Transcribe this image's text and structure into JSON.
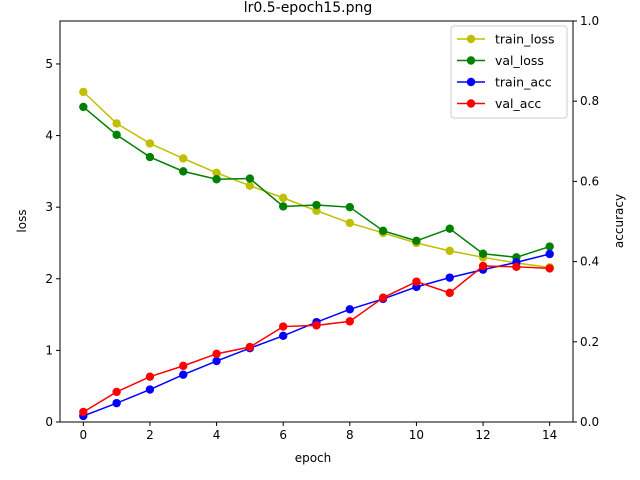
{
  "chart_data": {
    "type": "line",
    "title": "lr0.5-epoch15.png",
    "xlabel": "epoch",
    "ylabel": "loss",
    "y2label": "accuracy",
    "x": [
      0,
      1,
      2,
      3,
      4,
      5,
      6,
      7,
      8,
      9,
      10,
      11,
      12,
      13,
      14
    ],
    "xlim": [
      -0.7,
      14.7
    ],
    "ylim": [
      0,
      5.6
    ],
    "y2lim": [
      0,
      1.0
    ],
    "xticks": [
      0,
      2,
      4,
      6,
      8,
      10,
      12,
      14
    ],
    "xtick_labels": [
      "0",
      "2",
      "4",
      "6",
      "8",
      "10",
      "12",
      "14"
    ],
    "yticks": [
      0,
      1,
      2,
      3,
      4,
      5
    ],
    "ytick_labels": [
      "0",
      "1",
      "2",
      "3",
      "4",
      "5"
    ],
    "y2ticks": [
      0,
      0.2,
      0.4,
      0.6,
      0.8,
      1.0
    ],
    "y2tick_labels": [
      "0.0",
      "0.2",
      "0.4",
      "0.6",
      "0.8",
      "1.0"
    ],
    "grid": false,
    "legend_position": "top-right",
    "series": [
      {
        "name": "train_loss",
        "axis": "left",
        "color": "#bfbf00",
        "values": [
          4.61,
          4.17,
          3.89,
          3.68,
          3.48,
          3.3,
          3.13,
          2.95,
          2.78,
          2.64,
          2.5,
          2.39,
          2.3,
          2.22,
          2.16
        ]
      },
      {
        "name": "val_loss",
        "axis": "left",
        "color": "#008000",
        "values": [
          4.4,
          4.01,
          3.7,
          3.5,
          3.39,
          3.4,
          3.01,
          3.03,
          3.0,
          2.67,
          2.53,
          2.7,
          2.35,
          2.3,
          2.45
        ]
      },
      {
        "name": "train_acc",
        "axis": "right",
        "color": "#0000ff",
        "values": [
          0.015,
          0.047,
          0.081,
          0.118,
          0.152,
          0.184,
          0.215,
          0.249,
          0.281,
          0.307,
          0.337,
          0.36,
          0.38,
          0.398,
          0.419
        ]
      },
      {
        "name": "val_acc",
        "axis": "right",
        "color": "#ff0000",
        "values": [
          0.025,
          0.075,
          0.113,
          0.14,
          0.17,
          0.187,
          0.238,
          0.241,
          0.251,
          0.31,
          0.35,
          0.322,
          0.389,
          0.387,
          0.383
        ]
      }
    ]
  }
}
